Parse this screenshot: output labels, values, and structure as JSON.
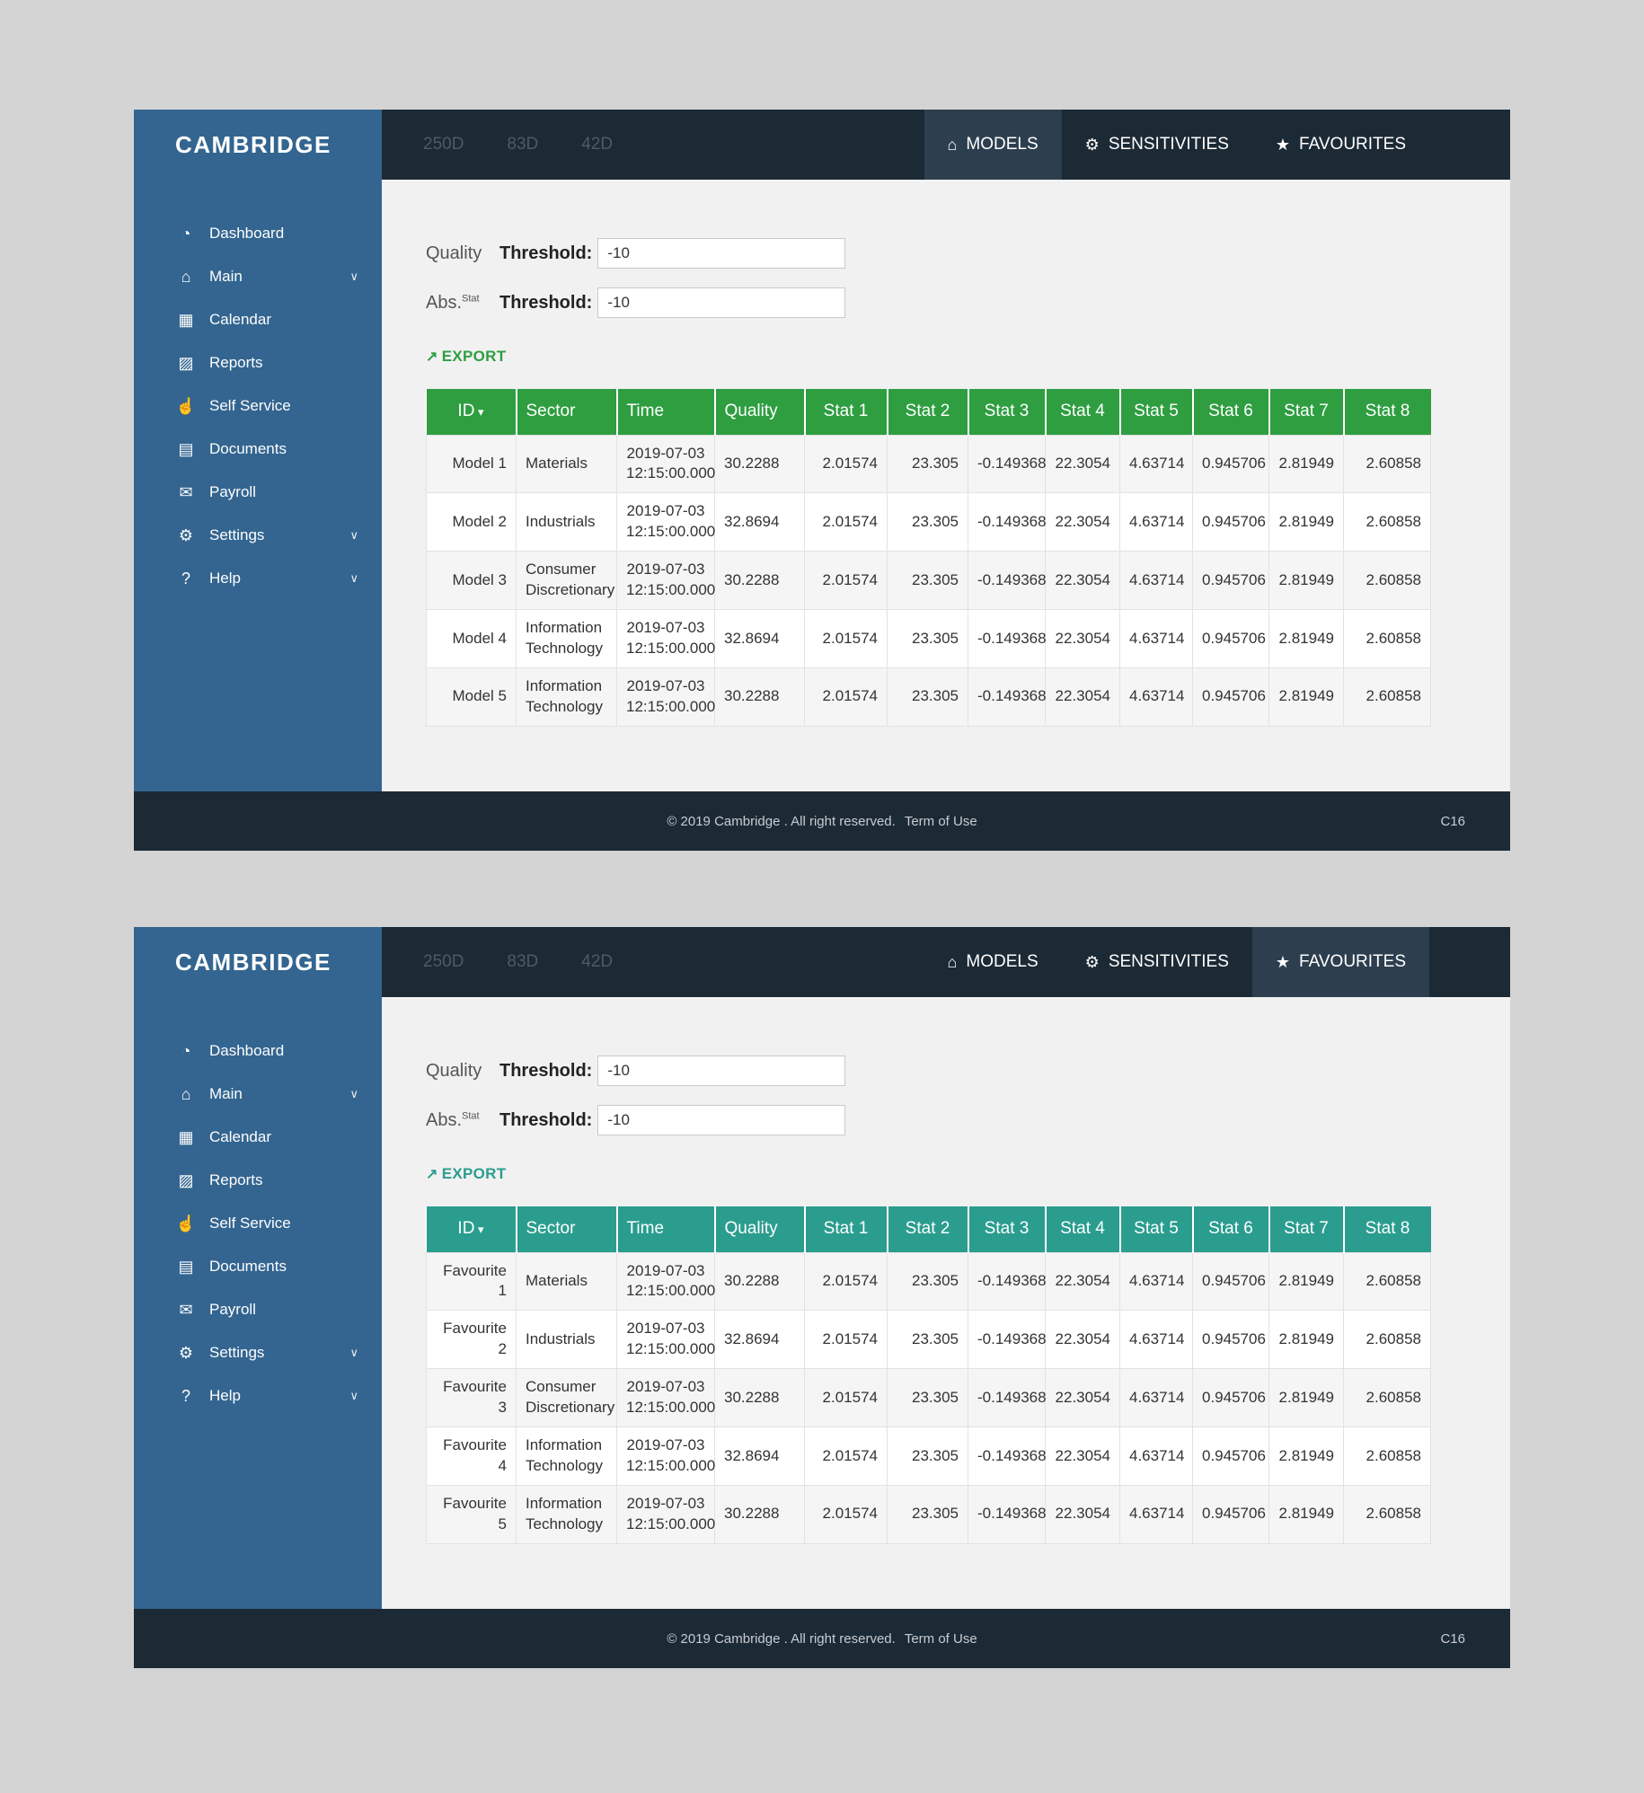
{
  "brand": "CAMBRIDGE",
  "colors": {
    "page_bg": "#d4d4d4",
    "sidebar_bg": "#336590",
    "navbar_bg": "#1c2a35",
    "active_tab_bg": "#2d3f4e",
    "muted_period_tab": "#4d5b66",
    "models_accent": "#2e9e40",
    "favourites_accent": "#2a9d8f"
  },
  "icons": {
    "chevron": "∨",
    "sort": "▾",
    "export": "↗"
  },
  "sidebar": {
    "items": [
      {
        "label": "Dashboard",
        "icon": "dashboard-icon",
        "glyph": "◔",
        "has_submenu": false
      },
      {
        "label": "Main",
        "icon": "home-icon",
        "glyph": "⌂",
        "has_submenu": true
      },
      {
        "label": "Calendar",
        "icon": "calendar-icon",
        "glyph": "▦",
        "has_submenu": false
      },
      {
        "label": "Reports",
        "icon": "bar-chart-icon",
        "glyph": "▨",
        "has_submenu": false
      },
      {
        "label": "Self Service",
        "icon": "hand-touch-icon",
        "glyph": "☝",
        "has_submenu": false
      },
      {
        "label": "Documents",
        "icon": "document-icon",
        "glyph": "▤",
        "has_submenu": false
      },
      {
        "label": "Payroll",
        "icon": "payroll-icon",
        "glyph": "✉",
        "has_submenu": false
      },
      {
        "label": "Settings",
        "icon": "gears-icon",
        "glyph": "⚙",
        "has_submenu": true
      },
      {
        "label": "Help",
        "icon": "question-icon",
        "glyph": "?",
        "has_submenu": true
      }
    ]
  },
  "navbar": {
    "period_tabs": [
      "250D",
      "83D",
      "42D"
    ],
    "tabs": [
      {
        "label": "MODELS",
        "icon": "home-icon",
        "glyph": "⌂"
      },
      {
        "label": "SENSITIVITIES",
        "icon": "gear-icon",
        "glyph": "⚙"
      },
      {
        "label": "FAVOURITES",
        "icon": "star-icon",
        "glyph": "★"
      }
    ]
  },
  "filters": {
    "rows": [
      {
        "label": "Quality",
        "sup": "",
        "bold": "Threshold:",
        "value": "-10"
      },
      {
        "label": "Abs.",
        "sup": "Stat",
        "bold": "Threshold:",
        "value": "-10"
      }
    ]
  },
  "export_label": "EXPORT",
  "table_columns": [
    {
      "label": "ID",
      "sort": true
    },
    {
      "label": "Sector"
    },
    {
      "label": "Time"
    },
    {
      "label": "Quality"
    },
    {
      "label": "Stat 1"
    },
    {
      "label": "Stat 2"
    },
    {
      "label": "Stat 3"
    },
    {
      "label": "Stat 4"
    },
    {
      "label": "Stat 5"
    },
    {
      "label": "Stat 6"
    },
    {
      "label": "Stat 7"
    },
    {
      "label": "Stat 8"
    }
  ],
  "sections": [
    {
      "name": "models",
      "active_tab": "MODELS",
      "accent": "#2e9e40",
      "rows": [
        [
          "Model 1",
          "Materials",
          "2019-07-03 12:15:00.000",
          "30.2288",
          "2.01574",
          "23.305",
          "-0.149368",
          "22.3054",
          "4.63714",
          "0.945706",
          "2.81949",
          "2.60858"
        ],
        [
          "Model 2",
          "Industrials",
          "2019-07-03 12:15:00.000",
          "32.8694",
          "2.01574",
          "23.305",
          "-0.149368",
          "22.3054",
          "4.63714",
          "0.945706",
          "2.81949",
          "2.60858"
        ],
        [
          "Model 3",
          "Consumer Discretionary",
          "2019-07-03 12:15:00.000",
          "30.2288",
          "2.01574",
          "23.305",
          "-0.149368",
          "22.3054",
          "4.63714",
          "0.945706",
          "2.81949",
          "2.60858"
        ],
        [
          "Model 4",
          "Information Technology",
          "2019-07-03 12:15:00.000",
          "32.8694",
          "2.01574",
          "23.305",
          "-0.149368",
          "22.3054",
          "4.63714",
          "0.945706",
          "2.81949",
          "2.60858"
        ],
        [
          "Model 5",
          "Information Technology",
          "2019-07-03 12:15:00.000",
          "30.2288",
          "2.01574",
          "23.305",
          "-0.149368",
          "22.3054",
          "4.63714",
          "0.945706",
          "2.81949",
          "2.60858"
        ]
      ]
    },
    {
      "name": "favourites",
      "active_tab": "FAVOURITES",
      "accent": "#2a9d8f",
      "rows": [
        [
          "Favourite 1",
          "Materials",
          "2019-07-03 12:15:00.000",
          "30.2288",
          "2.01574",
          "23.305",
          "-0.149368",
          "22.3054",
          "4.63714",
          "0.945706",
          "2.81949",
          "2.60858"
        ],
        [
          "Favourite 2",
          "Industrials",
          "2019-07-03 12:15:00.000",
          "32.8694",
          "2.01574",
          "23.305",
          "-0.149368",
          "22.3054",
          "4.63714",
          "0.945706",
          "2.81949",
          "2.60858"
        ],
        [
          "Favourite 3",
          "Consumer Discretionary",
          "2019-07-03 12:15:00.000",
          "30.2288",
          "2.01574",
          "23.305",
          "-0.149368",
          "22.3054",
          "4.63714",
          "0.945706",
          "2.81949",
          "2.60858"
        ],
        [
          "Favourite 4",
          "Information Technology",
          "2019-07-03 12:15:00.000",
          "32.8694",
          "2.01574",
          "23.305",
          "-0.149368",
          "22.3054",
          "4.63714",
          "0.945706",
          "2.81949",
          "2.60858"
        ],
        [
          "Favourite 5",
          "Information Technology",
          "2019-07-03 12:15:00.000",
          "30.2288",
          "2.01574",
          "23.305",
          "-0.149368",
          "22.3054",
          "4.63714",
          "0.945706",
          "2.81949",
          "2.60858"
        ]
      ]
    }
  ],
  "footer": {
    "copyright": "© 2019 Cambridge . All right reserved.",
    "term": "Term of Use",
    "code": "C16"
  }
}
